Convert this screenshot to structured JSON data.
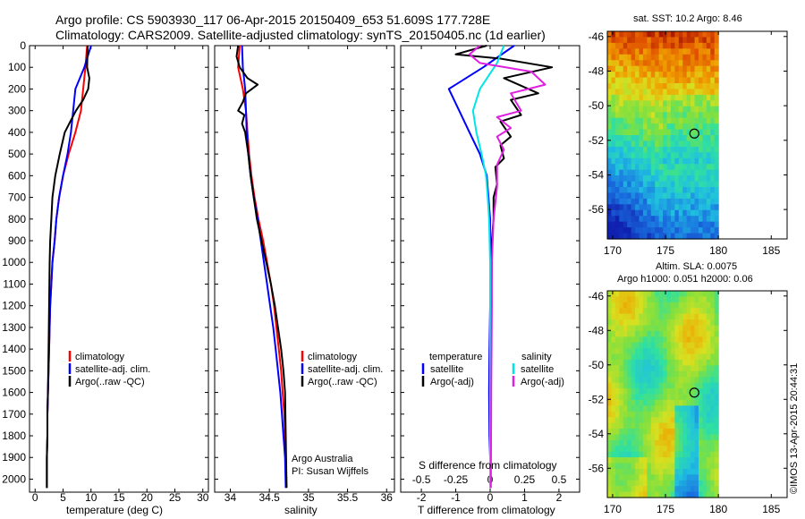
{
  "header": {
    "line1": "Argo profile: CS 5903930_117 06-Apr-2015 20150409_653 51.609S 177.728E",
    "line2": "Climatology: CARS2009. Satellite-adjusted climatology: synTS_20150405.nc (1d earlier)"
  },
  "colors": {
    "climatology": "#ff0000",
    "satellite": "#0000ff",
    "argo": "#000000",
    "satellite_salinity": "#00e5e5",
    "argo_salinity": "#e020e0"
  },
  "chart_data": [
    {
      "type": "line",
      "panel": "temperature",
      "xlabel": "temperature (deg C)",
      "ylabel": "",
      "xlim": [
        -1,
        31
      ],
      "ylim": [
        2060,
        0
      ],
      "xticks": [
        "0",
        "5",
        "10",
        "15",
        "20",
        "25",
        "30"
      ],
      "yticks": [
        "0",
        "100",
        "200",
        "300",
        "400",
        "500",
        "600",
        "700",
        "800",
        "900",
        "1000",
        "1100",
        "1200",
        "1300",
        "1400",
        "1500",
        "1600",
        "1700",
        "1800",
        "1900",
        "2000"
      ],
      "legend": [
        "climatology",
        "satellite-adj. clim.",
        "Argo(..raw -QC)"
      ],
      "series": [
        {
          "name": "climatology",
          "x": [
            9.3,
            9.0,
            8.6,
            8.2,
            7.2,
            6.0,
            5.0,
            4.3,
            3.8,
            3.5,
            3.1,
            2.9,
            2.7,
            2.6,
            2.5,
            2.4,
            2.3,
            2.2,
            2.2,
            2.1,
            2.1
          ],
          "y": [
            0,
            100,
            200,
            300,
            400,
            500,
            600,
            700,
            800,
            900,
            1000,
            1100,
            1200,
            1300,
            1400,
            1500,
            1600,
            1700,
            1800,
            1900,
            2040
          ]
        },
        {
          "name": "satellite-adj. clim.",
          "x": [
            10.0,
            8.8,
            7.2,
            6.8,
            6.4,
            5.8,
            5.0,
            4.3,
            3.8,
            3.5,
            3.1,
            2.9,
            2.7,
            2.6,
            2.5,
            2.4,
            2.3,
            2.2,
            2.2,
            2.1,
            2.1
          ],
          "y": [
            0,
            100,
            200,
            300,
            400,
            500,
            600,
            700,
            800,
            900,
            1000,
            1100,
            1200,
            1300,
            1400,
            1500,
            1600,
            1700,
            1800,
            1900,
            2040
          ]
        },
        {
          "name": "Argo(..raw -QC)",
          "x": [
            9.4,
            9.3,
            9.7,
            9.5,
            8.6,
            7.3,
            6.3,
            5.3,
            4.4,
            3.6,
            3.1,
            2.9,
            2.7,
            2.6,
            2.5,
            2.4,
            2.3,
            2.2,
            2.2,
            2.1,
            2.1
          ],
          "y": [
            0,
            100,
            150,
            200,
            250,
            300,
            350,
            400,
            500,
            600,
            700,
            800,
            900,
            1000,
            1200,
            1400,
            1600,
            1700,
            1800,
            1900,
            2040
          ]
        }
      ]
    },
    {
      "type": "line",
      "panel": "salinity",
      "xlabel": "salinity",
      "ylabel": "",
      "xlim": [
        33.8,
        36.1
      ],
      "ylim": [
        2060,
        0
      ],
      "xticks": [
        "34",
        "34.5",
        "35",
        "35.5",
        "36"
      ],
      "legend": [
        "climatology",
        "satellite-adj. clim.",
        "Argo(..raw -QC)"
      ],
      "annotations": [
        "Argo Australia",
        "PI: Susan Wijffels"
      ],
      "series": [
        {
          "name": "climatology",
          "x": [
            34.12,
            34.1,
            34.16,
            34.2,
            34.22,
            34.24,
            34.27,
            34.31,
            34.36,
            34.42,
            34.47,
            34.52,
            34.56,
            34.59,
            34.62,
            34.65,
            34.67,
            34.69,
            34.7,
            34.71,
            34.72
          ],
          "y": [
            0,
            100,
            200,
            300,
            400,
            500,
            600,
            700,
            800,
            900,
            1000,
            1100,
            1200,
            1300,
            1400,
            1500,
            1600,
            1700,
            1800,
            1900,
            2040
          ]
        },
        {
          "name": "satellite-adj. clim.",
          "x": [
            34.15,
            34.16,
            34.19,
            34.2,
            34.21,
            34.23,
            34.26,
            34.3,
            34.35,
            34.39,
            34.43,
            34.47,
            34.51,
            34.55,
            34.58,
            34.61,
            34.64,
            34.66,
            34.68,
            34.7,
            34.71
          ],
          "y": [
            0,
            100,
            200,
            300,
            400,
            500,
            600,
            700,
            800,
            900,
            1000,
            1100,
            1200,
            1300,
            1400,
            1500,
            1600,
            1700,
            1800,
            1900,
            2040
          ]
        },
        {
          "name": "Argo(..raw -QC)",
          "x": [
            34.1,
            34.08,
            34.12,
            34.22,
            34.35,
            34.2,
            34.16,
            34.1,
            34.18,
            34.15,
            34.19,
            34.23,
            34.26,
            34.3,
            34.34,
            34.4,
            34.46,
            34.52,
            34.57,
            34.61,
            34.65,
            34.68,
            34.7,
            34.72
          ],
          "y": [
            0,
            50,
            100,
            150,
            180,
            220,
            260,
            300,
            320,
            360,
            400,
            500,
            600,
            700,
            800,
            900,
            1000,
            1100,
            1200,
            1300,
            1400,
            1500,
            1600,
            2040
          ]
        }
      ]
    },
    {
      "type": "line",
      "panel": "difference",
      "xlabel": "T difference from climatology",
      "xlabel_top": "S difference from climatology",
      "xlim": [
        -2.6,
        2.6
      ],
      "ylim": [
        2060,
        0
      ],
      "xticks": [
        "-2",
        "-1",
        "0",
        "1",
        "2"
      ],
      "xticks_s": [
        "-0.5",
        "-0.25",
        "0",
        "0.25",
        "0.5"
      ],
      "legend_groups": [
        "temperature",
        "salinity"
      ],
      "legend": [
        "satellite",
        "Argo(-adj)",
        "satellite",
        "Argo(-adj)"
      ],
      "series": [
        {
          "name": "temperature satellite",
          "x": [
            0.7,
            -0.2,
            -1.2,
            -0.9,
            -0.6,
            -0.3,
            -0.1,
            -0.05,
            0,
            0,
            0,
            -0.02,
            -0.03,
            -0.02,
            0,
            0
          ],
          "y": [
            0,
            100,
            200,
            300,
            400,
            500,
            600,
            700,
            800,
            1000,
            1200,
            1400,
            1600,
            1800,
            1900,
            2040
          ]
        },
        {
          "name": "temperature Argo(-adj)",
          "x": [
            -0.1,
            -1.0,
            0.3,
            1.8,
            0.4,
            1.4,
            0.6,
            0.9,
            0.3,
            0.6,
            0.3,
            0.4,
            0.15,
            0.2,
            0.1,
            0.1,
            0.05,
            0.05,
            0.03,
            0.02,
            0.02,
            0.01
          ],
          "y": [
            0,
            40,
            60,
            100,
            150,
            220,
            250,
            320,
            350,
            420,
            460,
            520,
            560,
            640,
            700,
            800,
            900,
            1000,
            1200,
            1400,
            1600,
            2040
          ]
        },
        {
          "name": "salinity satellite",
          "x": [
            0.4,
            0.2,
            -0.3,
            -0.5,
            -0.4,
            -0.25,
            -0.12,
            -0.07,
            -0.03,
            0,
            0,
            0,
            0,
            0,
            0
          ],
          "y": [
            0,
            80,
            200,
            300,
            400,
            500,
            600,
            700,
            800,
            1000,
            1200,
            1400,
            1600,
            1800,
            2040
          ]
        },
        {
          "name": "salinity Argo(-adj)",
          "x": [
            -0.3,
            -0.6,
            -0.3,
            1.2,
            1.6,
            0.6,
            0.9,
            0.2,
            0.6,
            0.2,
            0.4,
            0.2,
            0.2,
            0.1,
            0.05,
            0.05,
            0.03,
            0.02
          ],
          "y": [
            0,
            40,
            80,
            120,
            180,
            220,
            300,
            330,
            380,
            420,
            480,
            550,
            650,
            800,
            1000,
            1200,
            1600,
            2040
          ]
        }
      ]
    },
    {
      "type": "heatmap",
      "panel": "sst-map",
      "title": "sat. SST: 10.2  Argo: 8.46",
      "xlim": [
        169.5,
        186.5
      ],
      "ylim": [
        -57.7,
        -45.7
      ],
      "xticks": [
        "170",
        "175",
        "180",
        "185"
      ],
      "yticks": [
        "-46",
        "-48",
        "-50",
        "-52",
        "-54",
        "-56"
      ],
      "marker": {
        "lon": 177.728,
        "lat": -51.609
      }
    },
    {
      "type": "heatmap",
      "panel": "sla-map",
      "title": "Altim. SLA: 0.0075",
      "subtitle": "Argo h1000: 0.051  h2000: 0.06",
      "xlim": [
        169.5,
        186.5
      ],
      "ylim": [
        -57.7,
        -45.7
      ],
      "xticks": [
        "170",
        "175",
        "180",
        "185"
      ],
      "yticks": [
        "-46",
        "-48",
        "-50",
        "-52",
        "-54",
        "-56"
      ],
      "marker": {
        "lon": 177.728,
        "lat": -51.609
      }
    }
  ],
  "footer": {
    "imos_stamp": "©IMOS 13-Apr-2015 20:44:31"
  }
}
